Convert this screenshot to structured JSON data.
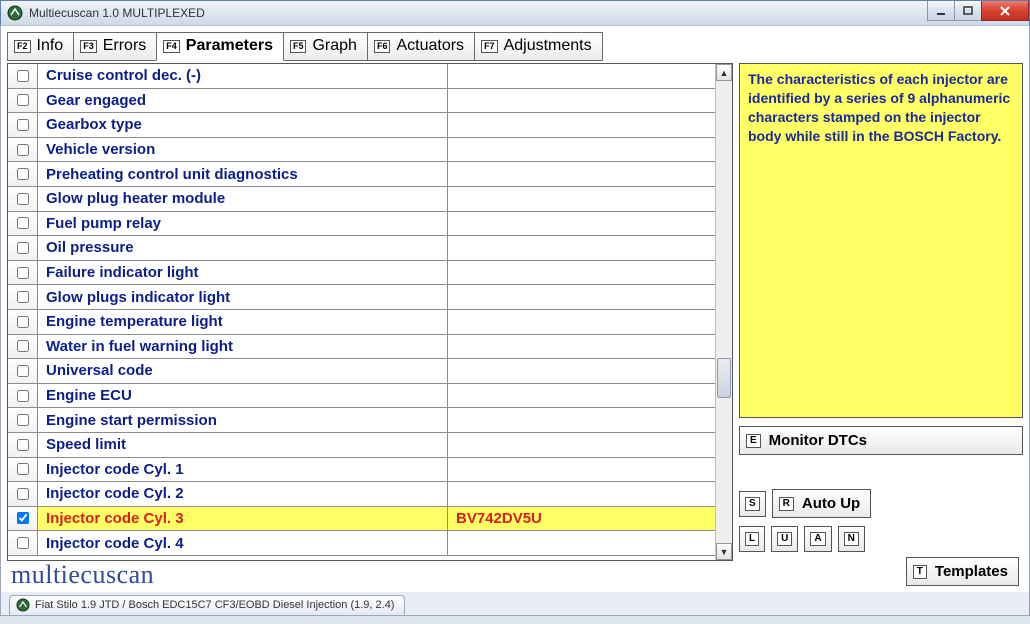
{
  "window": {
    "title": "Multiecuscan 1.0 MULTIPLEXED"
  },
  "tabs": [
    {
      "key": "F2",
      "label": "Info"
    },
    {
      "key": "F3",
      "label": "Errors"
    },
    {
      "key": "F4",
      "label": "Parameters",
      "active": true
    },
    {
      "key": "F5",
      "label": "Graph"
    },
    {
      "key": "F6",
      "label": "Actuators"
    },
    {
      "key": "F7",
      "label": "Adjustments"
    }
  ],
  "parameters": [
    {
      "name": "Cruise control dec. (-)",
      "value": "",
      "checked": false,
      "selected": false
    },
    {
      "name": "Gear engaged",
      "value": "",
      "checked": false,
      "selected": false
    },
    {
      "name": "Gearbox type",
      "value": "",
      "checked": false,
      "selected": false
    },
    {
      "name": "Vehicle version",
      "value": "",
      "checked": false,
      "selected": false
    },
    {
      "name": "Preheating control unit diagnostics",
      "value": "",
      "checked": false,
      "selected": false
    },
    {
      "name": "Glow plug heater module",
      "value": "",
      "checked": false,
      "selected": false
    },
    {
      "name": "Fuel pump relay",
      "value": "",
      "checked": false,
      "selected": false
    },
    {
      "name": "Oil pressure",
      "value": "",
      "checked": false,
      "selected": false
    },
    {
      "name": "Failure indicator light",
      "value": "",
      "checked": false,
      "selected": false
    },
    {
      "name": "Glow plugs indicator light",
      "value": "",
      "checked": false,
      "selected": false
    },
    {
      "name": "Engine temperature light",
      "value": "",
      "checked": false,
      "selected": false
    },
    {
      "name": "Water in fuel warning light",
      "value": "",
      "checked": false,
      "selected": false
    },
    {
      "name": "Universal code",
      "value": "",
      "checked": false,
      "selected": false
    },
    {
      "name": "Engine ECU",
      "value": "",
      "checked": false,
      "selected": false
    },
    {
      "name": "Engine start permission",
      "value": "",
      "checked": false,
      "selected": false
    },
    {
      "name": "Speed limit",
      "value": "",
      "checked": false,
      "selected": false
    },
    {
      "name": "Injector code Cyl. 1",
      "value": "",
      "checked": false,
      "selected": false
    },
    {
      "name": "Injector code Cyl. 2",
      "value": "",
      "checked": false,
      "selected": false
    },
    {
      "name": "Injector code Cyl. 3",
      "value": "BV742DV5U",
      "checked": true,
      "selected": true
    },
    {
      "name": "Injector code Cyl. 4",
      "value": "",
      "checked": false,
      "selected": false
    }
  ],
  "info_text": "The characteristics of each injector are identified by a series of 9 alphanumeric characters stamped on the injector body while still in the BOSCH Factory.",
  "buttons": {
    "monitor": {
      "key": "E",
      "label": "Monitor DTCs"
    },
    "row2_s": {
      "key": "S"
    },
    "row2_r": {
      "key": "R",
      "label": "Auto Up"
    },
    "row3_l": {
      "key": "L"
    },
    "row3_u": {
      "key": "U"
    },
    "row3_a": {
      "key": "A"
    },
    "row3_n": {
      "key": "N"
    },
    "templates": {
      "key": "T",
      "label": "Templates"
    }
  },
  "brand": "multiecuscan",
  "taskbar_item": "Fiat Stilo 1.9 JTD / Bosch EDC15C7 CF3/EOBD Diesel Injection (1.9, 2.4)",
  "colors": {
    "row_text": "#0b1f8a",
    "selected_bg": "#ffff66",
    "selected_text": "#d91f1f",
    "info_bg": "#ffff66",
    "info_text": "#1a2a9a"
  }
}
